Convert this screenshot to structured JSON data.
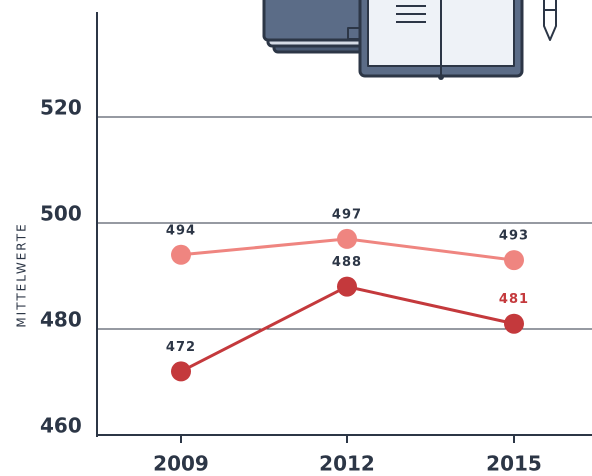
{
  "chart_data": {
    "type": "line",
    "y_label": "MITTELWERTE",
    "categories": [
      "2009",
      "2012",
      "2015"
    ],
    "series": [
      {
        "name": null,
        "color": "#ef8580",
        "values": [
          494,
          497,
          493
        ]
      },
      {
        "name": null,
        "color": "#c4393c",
        "values": [
          472,
          488,
          481
        ]
      }
    ],
    "ylim": [
      460,
      540
    ],
    "yticks": [
      460,
      480,
      500,
      520
    ],
    "grid": true
  }
}
